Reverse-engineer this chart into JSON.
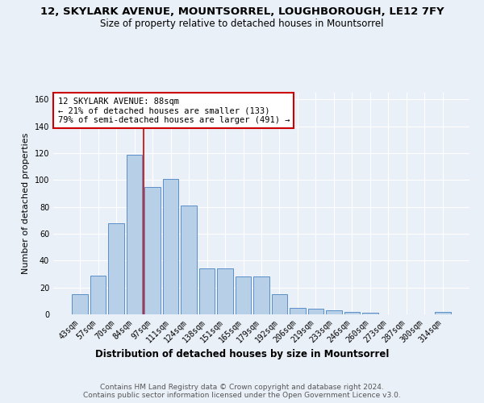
{
  "title_line1": "12, SKYLARK AVENUE, MOUNTSORREL, LOUGHBOROUGH, LE12 7FY",
  "title_line2": "Size of property relative to detached houses in Mountsorrel",
  "xlabel": "Distribution of detached houses by size in Mountsorrel",
  "ylabel": "Number of detached properties",
  "categories": [
    "43sqm",
    "57sqm",
    "70sqm",
    "84sqm",
    "97sqm",
    "111sqm",
    "124sqm",
    "138sqm",
    "151sqm",
    "165sqm",
    "179sqm",
    "192sqm",
    "206sqm",
    "219sqm",
    "233sqm",
    "246sqm",
    "260sqm",
    "273sqm",
    "287sqm",
    "300sqm",
    "314sqm"
  ],
  "values": [
    15,
    29,
    68,
    119,
    95,
    101,
    81,
    34,
    34,
    28,
    28,
    15,
    5,
    4,
    3,
    2,
    1,
    0,
    0,
    0,
    2
  ],
  "bar_color": "#b8cfe8",
  "bar_edge_color": "#5b8fc9",
  "vline_x": 3.5,
  "vline_color": "#cc0000",
  "annotation_text": "12 SKYLARK AVENUE: 88sqm\n← 21% of detached houses are smaller (133)\n79% of semi-detached houses are larger (491) →",
  "annotation_box_color": "#ffffff",
  "annotation_box_edge_color": "#cc0000",
  "ylim": [
    0,
    165
  ],
  "yticks": [
    0,
    20,
    40,
    60,
    80,
    100,
    120,
    140,
    160
  ],
  "background_color": "#eaf0f8",
  "grid_color": "#ffffff",
  "footer_text": "Contains HM Land Registry data © Crown copyright and database right 2024.\nContains public sector information licensed under the Open Government Licence v3.0.",
  "title_fontsize": 9.5,
  "subtitle_fontsize": 8.5,
  "axis_label_fontsize": 8,
  "tick_fontsize": 7,
  "annotation_fontsize": 7.5,
  "footer_fontsize": 6.5
}
